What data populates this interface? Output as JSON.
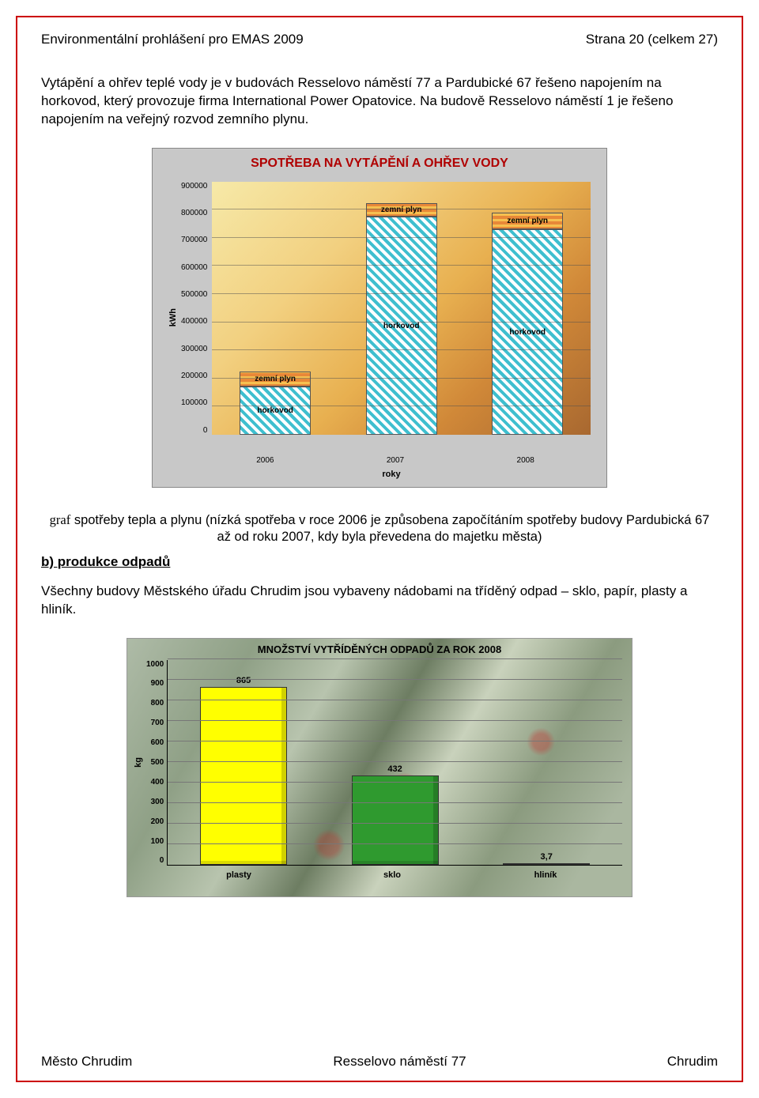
{
  "header": {
    "left": "Environmentální prohlášení pro EMAS 2009",
    "right": "Strana 20 (celkem 27)"
  },
  "para1": "Vytápění a ohřev teplé vody je v budovách Resselovo náměstí 77 a Pardubické 67 řešeno napojením na horkovod, který provozuje firma International Power Opatovice. Na budově Resselovo náměstí 1 je řešeno napojením na veřejný rozvod zemního plynu.",
  "chart1": {
    "title": "SPOTŘEBA NA VYTÁPĚNÍ A OHŘEV VODY",
    "ylabel": "kWh",
    "xlabel": "roky",
    "ylim": [
      0,
      900000
    ],
    "ytick_step": 100000,
    "categories": [
      "2006",
      "2007",
      "2008"
    ],
    "segment_labels": {
      "lower": "horkovod",
      "upper": "zemní plyn"
    },
    "series": [
      {
        "horkovod": 170000,
        "zemni_plyn": 55000
      },
      {
        "horkovod": 775000,
        "zemni_plyn": 50000
      },
      {
        "horkovod": 730000,
        "zemni_plyn": 60000
      }
    ],
    "colors": {
      "plot_bg_from": "#f6e9a8",
      "plot_bg_to": "#a86830",
      "horkovod_hatch_a": "#ffffff",
      "horkovod_hatch_b": "#3fbfcf",
      "plyn_a": "#e88838",
      "plyn_b": "#f6c050",
      "panel_bg": "#c8c8c8",
      "grid": "#505050"
    },
    "label_fontsize": 10,
    "title_fontsize": 16
  },
  "caption_prefix": "graf",
  "caption_rest": " spotřeby tepla a plynu (nízká spotřeba v roce 2006 je způsobena započítáním spotřeby budovy Pardubická 67 až od roku 2007, kdy byla převedena do majetku města)",
  "section_b": "b) produkce odpadů",
  "para2": "Všechny budovy Městského úřadu Chrudim jsou vybaveny nádobami na tříděný odpad – sklo, papír, plasty a hliník.",
  "chart2": {
    "title": "MNOŽSTVÍ VYTŘÍDĚNÝCH ODPADŮ ZA ROK 2008",
    "ylabel": "kg",
    "ylim": [
      0,
      1000
    ],
    "ytick_step": 100,
    "categories": [
      "plasty",
      "sklo",
      "hliník"
    ],
    "values": [
      865,
      432,
      3.7
    ],
    "value_labels": [
      "865",
      "432",
      "3,7"
    ],
    "bar_colors": [
      "#ffff00",
      "#2f9a2f",
      "#d8d8d8"
    ],
    "grid_color": "#777777",
    "label_fontsize": 11,
    "title_fontsize": 13
  },
  "footer": {
    "left": "Město Chrudim",
    "center": "Resselovo náměstí 77",
    "right": "Chrudim"
  }
}
